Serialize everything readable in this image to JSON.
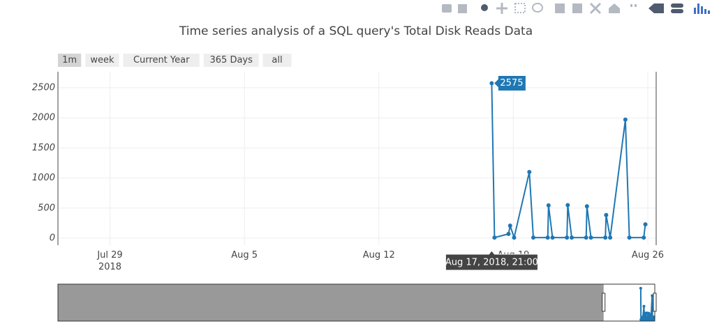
{
  "chart_data": {
    "type": "line",
    "title": "Time series analysis of a SQL query's Total Disk Reads Data",
    "range_buttons": [
      "1m",
      "week",
      "Current Year",
      "365 Days",
      "all"
    ],
    "active_button": "1m",
    "x": [
      "2018-08-17T21:00",
      "2018-08-18T00:30",
      "2018-08-18T18:00",
      "2018-08-18T20:00",
      "2018-08-19T01:00",
      "2018-08-19T20:00",
      "2018-08-20T01:00",
      "2018-08-20T19:00",
      "2018-08-20T20:00",
      "2018-08-21T01:00",
      "2018-08-21T19:00",
      "2018-08-21T20:00",
      "2018-08-22T01:00",
      "2018-08-22T19:00",
      "2018-08-22T20:00",
      "2018-08-23T01:00",
      "2018-08-23T19:00",
      "2018-08-23T20:00",
      "2018-08-24T01:00",
      "2018-08-24T20:00",
      "2018-08-25T01:00",
      "2018-08-25T19:00",
      "2018-08-25T21:00"
    ],
    "values": [
      2575,
      10,
      70,
      208,
      10,
      1100,
      10,
      10,
      545,
      10,
      10,
      550,
      10,
      10,
      530,
      10,
      10,
      385,
      10,
      1970,
      10,
      10,
      230
    ],
    "color": "#1f77b4",
    "xlim": [
      "2018-07-26T07:00",
      "2018-08-26T10:30"
    ],
    "xticks": [
      {
        "value": "2018-07-29",
        "label": "Jul 29\n2018"
      },
      {
        "value": "2018-08-05",
        "label": "Aug 5"
      },
      {
        "value": "2018-08-12",
        "label": "Aug 12"
      },
      {
        "value": "2018-08-19",
        "label": "Aug 19"
      },
      {
        "value": "2018-08-26",
        "label": "Aug 26"
      }
    ],
    "ylim": [
      -116,
      2766
    ],
    "yticks": [
      0,
      500,
      1000,
      1500,
      2000,
      2500
    ],
    "grid": true,
    "hover_index": 0,
    "hover_x_label": "Aug 17, 2018, 21:00",
    "rangeslider": {
      "xlim": [
        "2017-08-28T00:00",
        "2018-08-26T10:30"
      ]
    }
  }
}
